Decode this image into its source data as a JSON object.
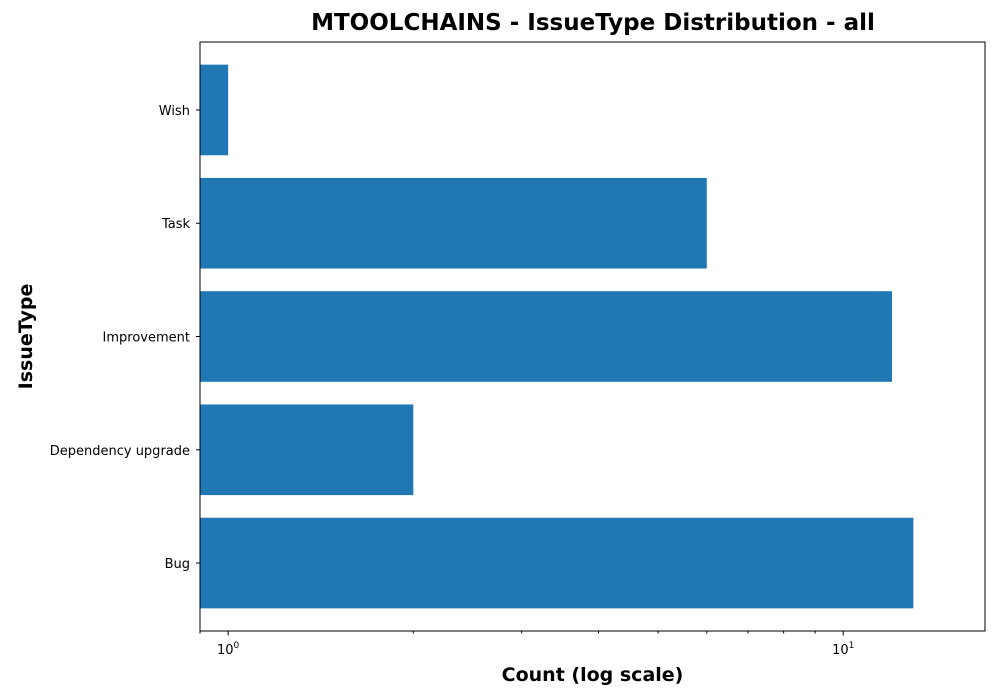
{
  "chart_data": {
    "type": "bar",
    "orientation": "horizontal",
    "title": "MTOOLCHAINS - IssueType Distribution - all",
    "xlabel": "Count (log scale)",
    "ylabel": "IssueType",
    "xscale": "log",
    "xlim": [
      0.9,
      17
    ],
    "x_ticks": [
      {
        "value": 1,
        "base": "10",
        "exp": "0"
      },
      {
        "value": 10,
        "base": "10",
        "exp": "1"
      }
    ],
    "categories": [
      "Bug",
      "Dependency upgrade",
      "Improvement",
      "Task",
      "Wish"
    ],
    "values": [
      13,
      2,
      12,
      6,
      1
    ],
    "bar_color": "#1f77b4",
    "grid": false,
    "legend": "none"
  }
}
